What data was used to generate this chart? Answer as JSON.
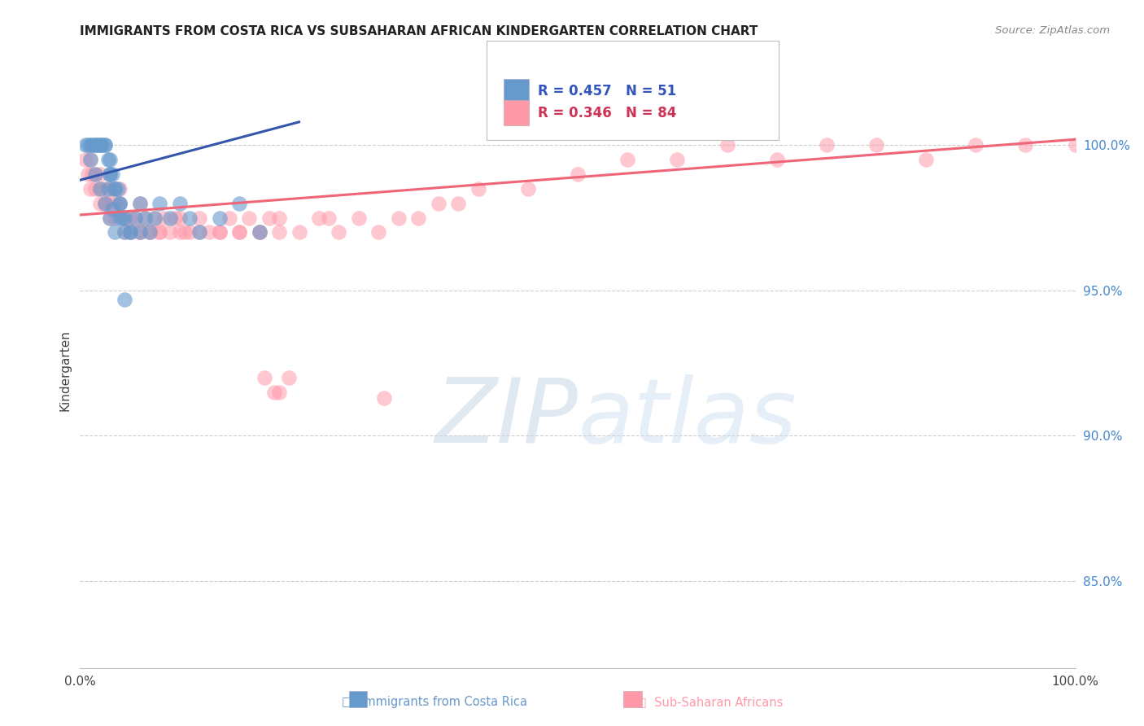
{
  "title": "IMMIGRANTS FROM COSTA RICA VS SUBSAHARAN AFRICAN KINDERGARTEN CORRELATION CHART",
  "source": "Source: ZipAtlas.com",
  "ylabel": "Kindergarten",
  "legend1_r": "0.457",
  "legend1_n": "51",
  "legend2_r": "0.346",
  "legend2_n": "84",
  "blue_color": "#6699CC",
  "pink_color": "#FF99AA",
  "blue_edge_color": "#5588BB",
  "pink_edge_color": "#EE8899",
  "blue_line_color": "#3355AA",
  "pink_line_color": "#EE6677",
  "background_color": "#FFFFFF",
  "xlim": [
    0.0,
    100.0
  ],
  "ylim": [
    82.0,
    102.5
  ],
  "yticks": [
    85.0,
    90.0,
    95.0,
    100.0
  ],
  "ytick_labels": [
    "85.0%",
    "90.0%",
    "95.0%",
    "100.0%"
  ],
  "blue_x": [
    0.5,
    0.8,
    1.0,
    1.2,
    1.5,
    1.5,
    1.8,
    2.0,
    2.0,
    2.2,
    2.5,
    2.5,
    2.8,
    3.0,
    3.0,
    3.0,
    3.2,
    3.5,
    3.5,
    3.8,
    4.0,
    4.0,
    4.2,
    4.5,
    4.5,
    5.0,
    5.0,
    5.5,
    6.0,
    6.0,
    6.5,
    7.0,
    7.5,
    8.0,
    9.0,
    10.0,
    11.0,
    12.0,
    14.0,
    16.0,
    18.0,
    1.0,
    1.5,
    2.0,
    2.5,
    3.0,
    3.5,
    4.0,
    2.8,
    3.2,
    4.5
  ],
  "blue_y": [
    100.0,
    100.0,
    100.0,
    100.0,
    100.0,
    100.0,
    100.0,
    100.0,
    100.0,
    100.0,
    100.0,
    100.0,
    99.5,
    99.5,
    99.0,
    99.0,
    99.0,
    98.5,
    98.5,
    98.5,
    98.0,
    98.0,
    97.5,
    97.5,
    97.0,
    97.0,
    97.0,
    97.5,
    97.0,
    98.0,
    97.5,
    97.0,
    97.5,
    98.0,
    97.5,
    98.0,
    97.5,
    97.0,
    97.5,
    98.0,
    97.0,
    99.5,
    99.0,
    98.5,
    98.0,
    97.5,
    97.0,
    97.5,
    98.5,
    97.8,
    94.7
  ],
  "pink_x": [
    0.5,
    0.8,
    1.0,
    1.2,
    1.5,
    1.5,
    2.0,
    2.0,
    2.5,
    2.5,
    3.0,
    3.0,
    3.5,
    3.5,
    4.0,
    4.0,
    4.5,
    5.0,
    5.5,
    6.0,
    6.0,
    6.5,
    7.0,
    7.5,
    8.0,
    8.5,
    9.0,
    9.5,
    10.0,
    10.5,
    11.0,
    12.0,
    13.0,
    14.0,
    15.0,
    16.0,
    17.0,
    18.0,
    19.0,
    20.0,
    22.0,
    24.0,
    26.0,
    28.0,
    30.0,
    32.0,
    34.0,
    36.0,
    38.0,
    40.0,
    45.0,
    50.0,
    55.0,
    60.0,
    65.0,
    70.0,
    75.0,
    80.0,
    85.0,
    90.0,
    95.0,
    100.0,
    1.0,
    2.0,
    3.0,
    5.0,
    7.0,
    10.0,
    14.0,
    18.0,
    2.5,
    3.5,
    4.5,
    6.0,
    8.0,
    12.0,
    16.0,
    20.0,
    25.0,
    21.0,
    20.0,
    19.5,
    18.5,
    30.5
  ],
  "pink_y": [
    99.5,
    99.0,
    99.5,
    99.0,
    99.0,
    98.5,
    99.0,
    98.5,
    98.5,
    98.0,
    98.5,
    98.0,
    98.5,
    98.0,
    98.5,
    98.0,
    97.5,
    97.5,
    97.5,
    98.0,
    97.0,
    97.5,
    97.0,
    97.5,
    97.0,
    97.5,
    97.0,
    97.5,
    97.5,
    97.0,
    97.0,
    97.5,
    97.0,
    97.0,
    97.5,
    97.0,
    97.5,
    97.0,
    97.5,
    97.5,
    97.0,
    97.5,
    97.0,
    97.5,
    97.0,
    97.5,
    97.5,
    98.0,
    98.0,
    98.5,
    98.5,
    99.0,
    99.5,
    99.5,
    100.0,
    99.5,
    100.0,
    100.0,
    99.5,
    100.0,
    100.0,
    100.0,
    98.5,
    98.0,
    97.5,
    97.0,
    97.0,
    97.0,
    97.0,
    97.0,
    98.0,
    97.5,
    97.0,
    97.0,
    97.0,
    97.0,
    97.0,
    97.0,
    97.5,
    92.0,
    91.5,
    91.5,
    92.0,
    91.3
  ],
  "blue_trend_x0": 0.0,
  "blue_trend_x1": 22.0,
  "blue_trend_y0": 98.8,
  "blue_trend_y1": 100.8,
  "pink_trend_x0": 0.0,
  "pink_trend_x1": 100.0,
  "pink_trend_y0": 97.6,
  "pink_trend_y1": 100.2
}
